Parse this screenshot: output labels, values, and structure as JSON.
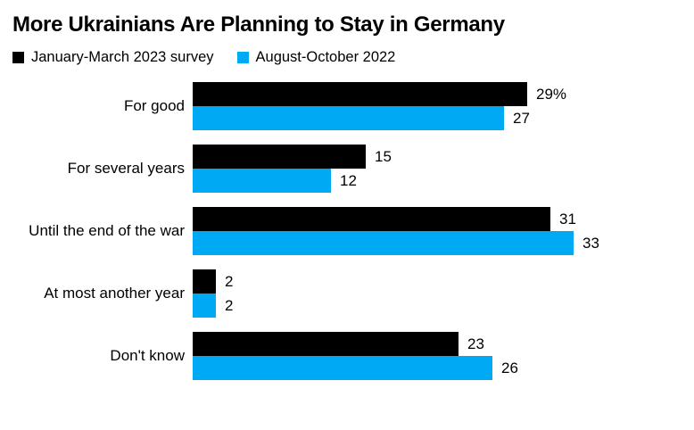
{
  "title": "More Ukrainians Are Planning to Stay in Germany",
  "colors": {
    "series1": "#000000",
    "series2": "#00a9f4",
    "background": "#ffffff",
    "text": "#000000"
  },
  "chart_data": {
    "type": "bar",
    "orientation": "horizontal",
    "title": "More Ukrainians Are Planning to Stay in Germany",
    "categories": [
      "For good",
      "For several years",
      "Until the end of the war",
      "At most another year",
      "Don't know"
    ],
    "series": [
      {
        "name": "January-March 2023 survey",
        "color": "#000000",
        "values": [
          29,
          15,
          31,
          2,
          23
        ],
        "value_labels": [
          "29%",
          "15",
          "31",
          "2",
          "23"
        ]
      },
      {
        "name": "August-October 2022",
        "color": "#00a9f4",
        "values": [
          27,
          12,
          33,
          2,
          26
        ],
        "value_labels": [
          "27",
          "12",
          "33",
          "2",
          "26"
        ]
      }
    ],
    "xlim": [
      0,
      33
    ],
    "grid": false,
    "axis_ticks": "none",
    "legend_position": "top-left",
    "value_label_position": "right-of-bar"
  }
}
